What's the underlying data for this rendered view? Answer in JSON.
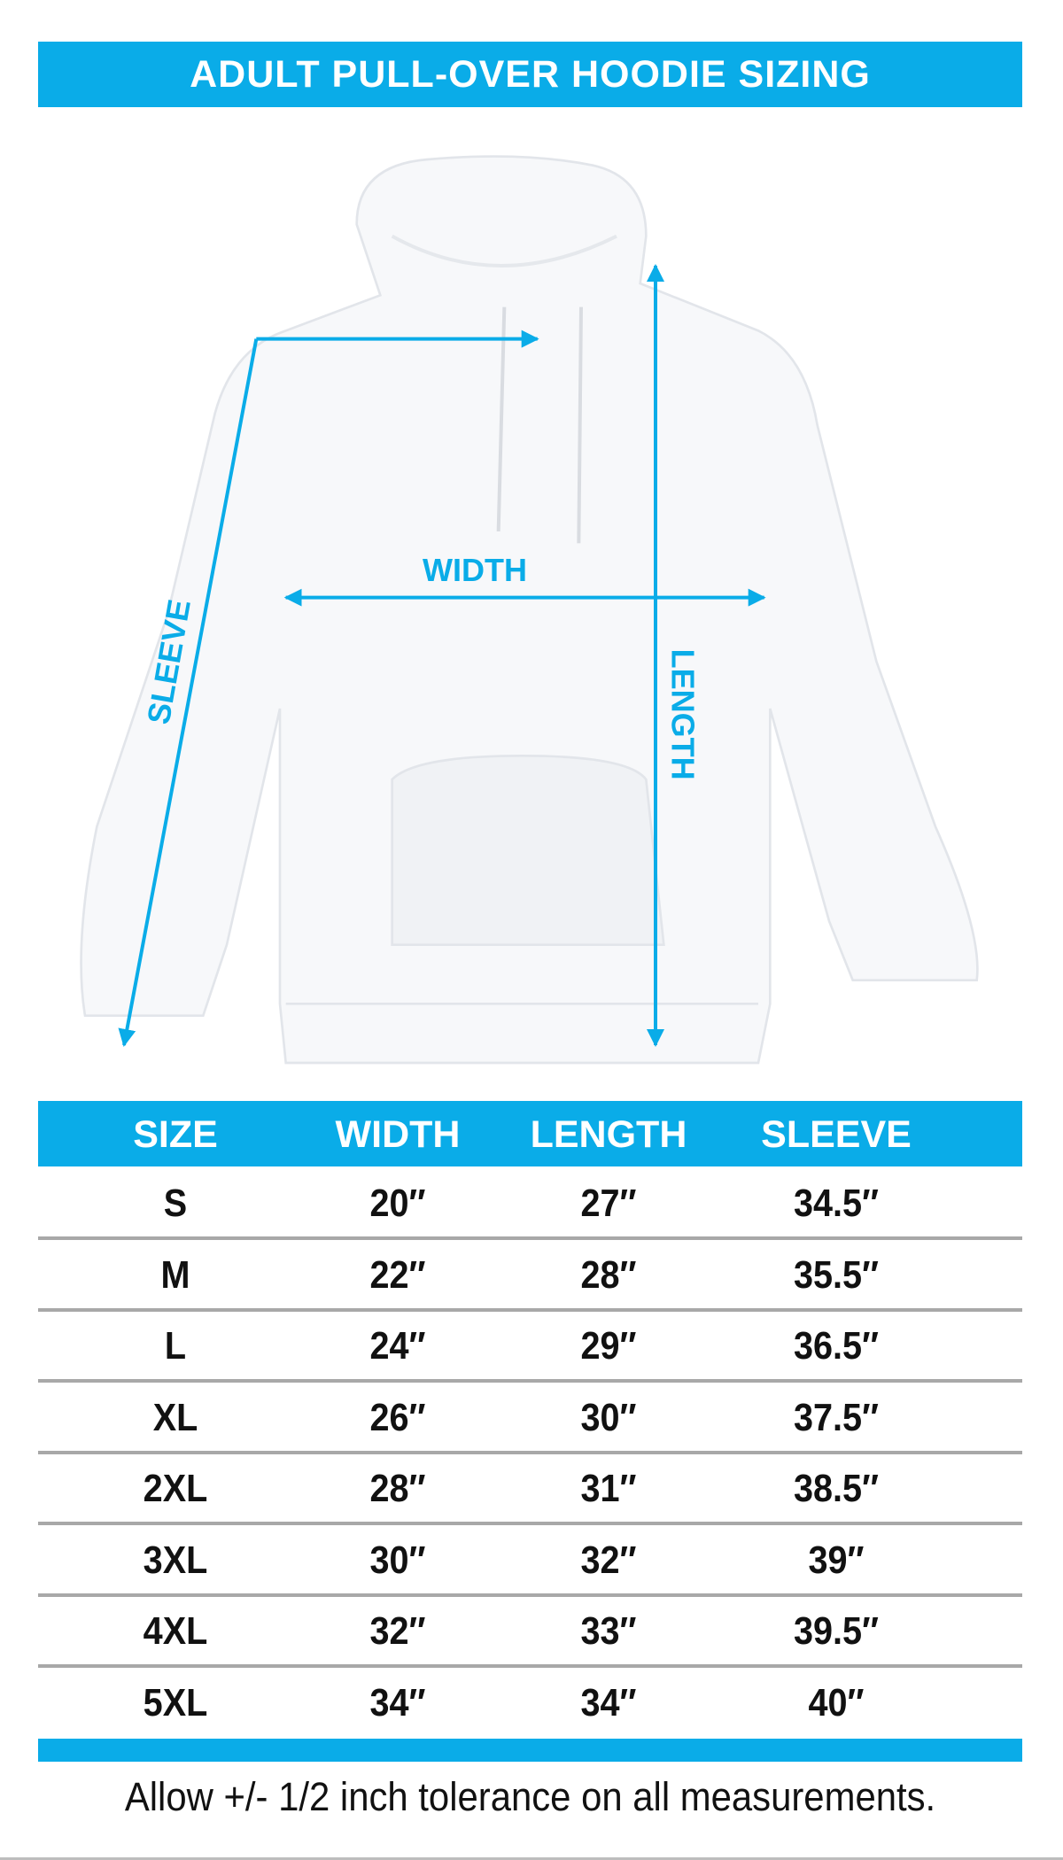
{
  "title": "ADULT PULL-OVER HOODIE SIZING",
  "diagram": {
    "labels": {
      "width": "WIDTH",
      "length": "LENGTH",
      "sleeve": "SLEEVE"
    },
    "accent_color": "#0aace8"
  },
  "table": {
    "headers": [
      "SIZE",
      "WIDTH",
      "LENGTH",
      "SLEEVE"
    ],
    "rows": [
      [
        "S",
        "20″",
        "27″",
        "34.5″"
      ],
      [
        "M",
        "22″",
        "28″",
        "35.5″"
      ],
      [
        "L",
        "24″",
        "29″",
        "36.5″"
      ],
      [
        "XL",
        "26″",
        "30″",
        "37.5″"
      ],
      [
        "2XL",
        "28″",
        "31″",
        "38.5″"
      ],
      [
        "3XL",
        "30″",
        "32″",
        "39″"
      ],
      [
        "4XL",
        "32″",
        "33″",
        "39.5″"
      ],
      [
        "5XL",
        "34″",
        "34″",
        "40″"
      ]
    ]
  },
  "note": "Allow +/- 1/2 inch tolerance on all measurements."
}
